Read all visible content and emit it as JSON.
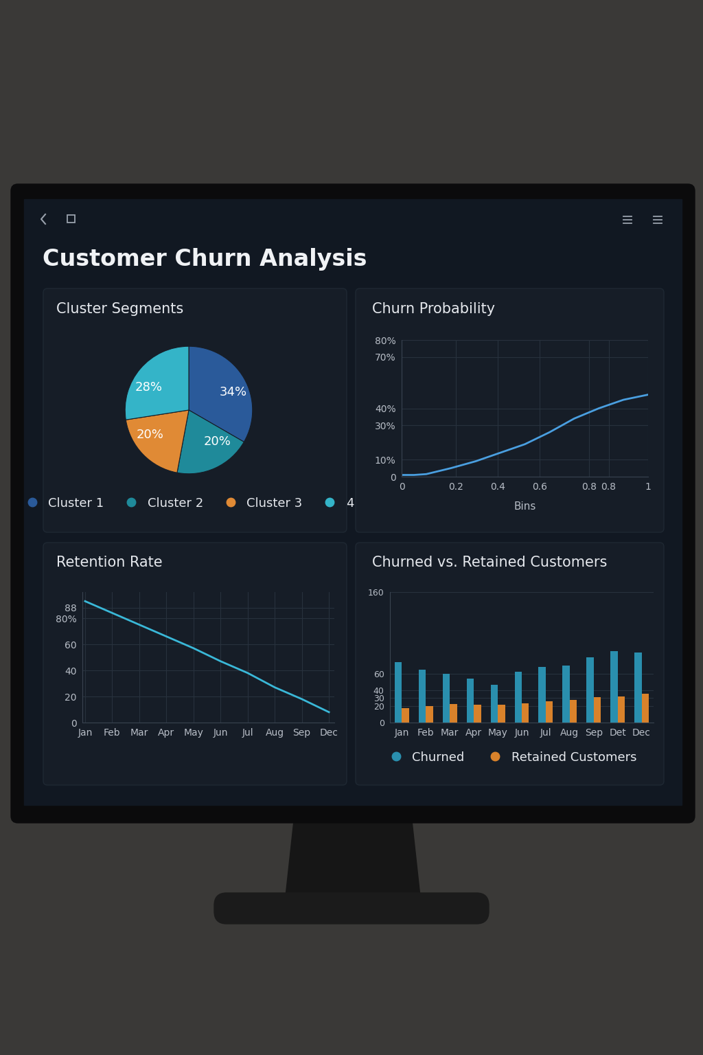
{
  "title": "Customer Churn Analysis",
  "chart_data": [
    {
      "type": "pie",
      "title": "Cluster Segments",
      "categories": [
        "Cluster 1",
        "Cluster 2",
        "Cluster 3",
        "4"
      ],
      "values": [
        34,
        20,
        20,
        28
      ],
      "value_labels": [
        "34%",
        "20%",
        "20%",
        "28%"
      ],
      "colors": [
        "#2a5a9a",
        "#1f8a9a",
        "#e08a35",
        "#34b4c8"
      ],
      "data_labels": true,
      "legend": "lower center"
    },
    {
      "type": "line",
      "title": "Churn Probability",
      "xlabel": "Bins",
      "x": [
        0,
        0.05,
        0.1,
        0.2,
        0.3,
        0.4,
        0.5,
        0.6,
        0.7,
        0.8,
        0.9,
        1
      ],
      "values": [
        1,
        1,
        1.5,
        5,
        9,
        14,
        19,
        26,
        34,
        40,
        45,
        48
      ],
      "color": "#4a9fe0",
      "xlim": [
        0,
        1
      ],
      "xticks": [
        0,
        {
          "value": 0.22,
          "label": "0.2"
        },
        {
          "value": 0.39,
          "label": "0.4"
        },
        {
          "value": 0.56,
          "label": "0.6"
        },
        {
          "value": 0.76,
          "label": "0.8"
        },
        {
          "value": 0.84,
          "label": "0.8"
        },
        1
      ],
      "ylim": [
        0,
        80
      ],
      "yticks": [
        0,
        {
          "value": 10,
          "label": "10%"
        },
        {
          "value": 30,
          "label": "30%"
        },
        {
          "value": 40,
          "label": "40%"
        },
        {
          "value": 80,
          "label": "80%"
        },
        {
          "value": 70,
          "label": "70%"
        }
      ],
      "grid": true
    },
    {
      "type": "line",
      "title": "Retention Rate",
      "categories": [
        "Jan",
        "Feb",
        "Mar",
        "Apr",
        "May",
        "Jun",
        "Jul",
        "Aug",
        "Sep",
        "Dec"
      ],
      "values": [
        93,
        84,
        75,
        66,
        57,
        47,
        38,
        27,
        18,
        8
      ],
      "color": "#3ab8d8",
      "ylim": [
        0,
        100
      ],
      "yticks": [
        0,
        20,
        40,
        60,
        {
          "value": 80,
          "label": "80%"
        },
        88
      ],
      "grid": true
    },
    {
      "type": "bar",
      "title": "Churned vs. Retained Customers",
      "categories": [
        "Jan",
        "Feb",
        "Mar",
        "Apr",
        "May",
        "Jun",
        "Jul",
        "Aug",
        "Sep",
        "Det",
        "Dec"
      ],
      "series": [
        {
          "name": "Churned",
          "color": "#2a8fae",
          "values": [
            74,
            65,
            60,
            54,
            46,
            62,
            68,
            70,
            80,
            88,
            86
          ]
        },
        {
          "name": "Retained Customers",
          "color": "#d9822b",
          "values": [
            18,
            20,
            23,
            22,
            22,
            24,
            26,
            28,
            31,
            32,
            35
          ]
        }
      ],
      "ylim": [
        0,
        160
      ],
      "yticks": [
        0,
        20,
        30,
        40,
        60,
        160
      ],
      "grid": true,
      "legend": "lower center"
    }
  ]
}
